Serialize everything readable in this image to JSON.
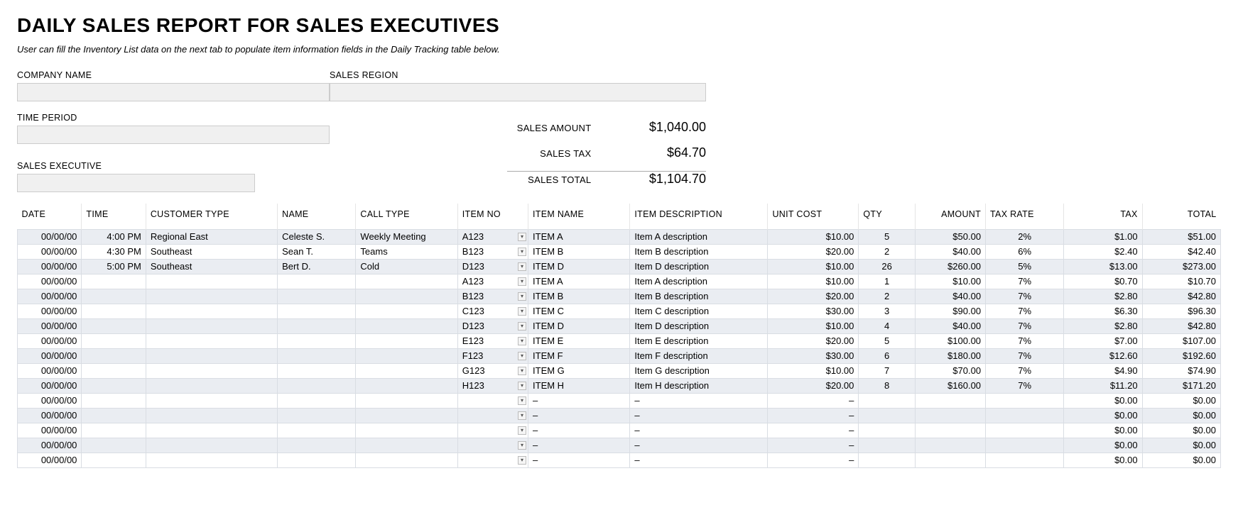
{
  "title": "DAILY SALES REPORT FOR SALES EXECUTIVES",
  "subtitle": "User can fill the Inventory List data on the next tab to populate item information fields in the Daily Tracking table below.",
  "fields": {
    "company_name": {
      "label": "COMPANY NAME",
      "value": ""
    },
    "sales_region": {
      "label": "SALES REGION",
      "value": ""
    },
    "time_period": {
      "label": "TIME PERIOD",
      "value": ""
    },
    "sales_exec": {
      "label": "SALES EXECUTIVE",
      "value": ""
    }
  },
  "summary": {
    "sales_amount": {
      "label": "SALES AMOUNT",
      "value": "$1,040.00"
    },
    "sales_tax": {
      "label": "SALES TAX",
      "value": "$64.70"
    },
    "sales_total": {
      "label": "SALES TOTAL",
      "value": "$1,104.70"
    }
  },
  "columns": [
    "DATE",
    "TIME",
    "CUSTOMER TYPE",
    "NAME",
    "CALL TYPE",
    "ITEM NO",
    "ITEM NAME",
    "ITEM DESCRIPTION",
    "UNIT COST",
    "QTY",
    "AMOUNT",
    "TAX RATE",
    "TAX",
    "TOTAL"
  ],
  "col_align": [
    "r",
    "r",
    "l",
    "l",
    "l",
    "l",
    "l",
    "l",
    "r",
    "c",
    "r",
    "c",
    "r",
    "r"
  ],
  "head_align": [
    "l",
    "l",
    "l",
    "l",
    "l",
    "l",
    "l",
    "l",
    "l",
    "l",
    "r",
    "l",
    "r",
    "r"
  ],
  "rows": [
    [
      "00/00/00",
      "4:00 PM",
      "Regional East",
      "Celeste S.",
      "Weekly Meeting",
      "A123",
      "ITEM A",
      "Item A description",
      "$10.00",
      "5",
      "$50.00",
      "2%",
      "$1.00",
      "$51.00"
    ],
    [
      "00/00/00",
      "4:30 PM",
      "Southeast",
      "Sean T.",
      "Teams",
      "B123",
      "ITEM B",
      "Item B description",
      "$20.00",
      "2",
      "$40.00",
      "6%",
      "$2.40",
      "$42.40"
    ],
    [
      "00/00/00",
      "5:00 PM",
      "Southeast",
      "Bert D.",
      "Cold",
      "D123",
      "ITEM D",
      "Item D description",
      "$10.00",
      "26",
      "$260.00",
      "5%",
      "$13.00",
      "$273.00"
    ],
    [
      "00/00/00",
      "",
      "",
      "",
      "",
      "A123",
      "ITEM A",
      "Item A description",
      "$10.00",
      "1",
      "$10.00",
      "7%",
      "$0.70",
      "$10.70"
    ],
    [
      "00/00/00",
      "",
      "",
      "",
      "",
      "B123",
      "ITEM B",
      "Item B description",
      "$20.00",
      "2",
      "$40.00",
      "7%",
      "$2.80",
      "$42.80"
    ],
    [
      "00/00/00",
      "",
      "",
      "",
      "",
      "C123",
      "ITEM C",
      "Item C description",
      "$30.00",
      "3",
      "$90.00",
      "7%",
      "$6.30",
      "$96.30"
    ],
    [
      "00/00/00",
      "",
      "",
      "",
      "",
      "D123",
      "ITEM D",
      "Item D description",
      "$10.00",
      "4",
      "$40.00",
      "7%",
      "$2.80",
      "$42.80"
    ],
    [
      "00/00/00",
      "",
      "",
      "",
      "",
      "E123",
      "ITEM E",
      "Item E description",
      "$20.00",
      "5",
      "$100.00",
      "7%",
      "$7.00",
      "$107.00"
    ],
    [
      "00/00/00",
      "",
      "",
      "",
      "",
      "F123",
      "ITEM F",
      "Item F description",
      "$30.00",
      "6",
      "$180.00",
      "7%",
      "$12.60",
      "$192.60"
    ],
    [
      "00/00/00",
      "",
      "",
      "",
      "",
      "G123",
      "ITEM G",
      "Item G description",
      "$10.00",
      "7",
      "$70.00",
      "7%",
      "$4.90",
      "$74.90"
    ],
    [
      "00/00/00",
      "",
      "",
      "",
      "",
      "H123",
      "ITEM H",
      "Item H description",
      "$20.00",
      "8",
      "$160.00",
      "7%",
      "$11.20",
      "$171.20"
    ],
    [
      "00/00/00",
      "",
      "",
      "",
      "",
      "",
      "–",
      "–",
      "–",
      "",
      "",
      "",
      "$0.00",
      "$0.00"
    ],
    [
      "00/00/00",
      "",
      "",
      "",
      "",
      "",
      "–",
      "–",
      "–",
      "",
      "",
      "",
      "$0.00",
      "$0.00"
    ],
    [
      "00/00/00",
      "",
      "",
      "",
      "",
      "",
      "–",
      "–",
      "–",
      "",
      "",
      "",
      "$0.00",
      "$0.00"
    ],
    [
      "00/00/00",
      "",
      "",
      "",
      "",
      "",
      "–",
      "–",
      "–",
      "",
      "",
      "",
      "$0.00",
      "$0.00"
    ],
    [
      "00/00/00",
      "",
      "",
      "",
      "",
      "",
      "–",
      "–",
      "–",
      "",
      "",
      "",
      "$0.00",
      "$0.00"
    ]
  ],
  "colors": {
    "row_odd": "#eaedf2",
    "row_even": "#ffffff",
    "border": "#d9dde3",
    "input_bg": "#f0f0f0"
  }
}
